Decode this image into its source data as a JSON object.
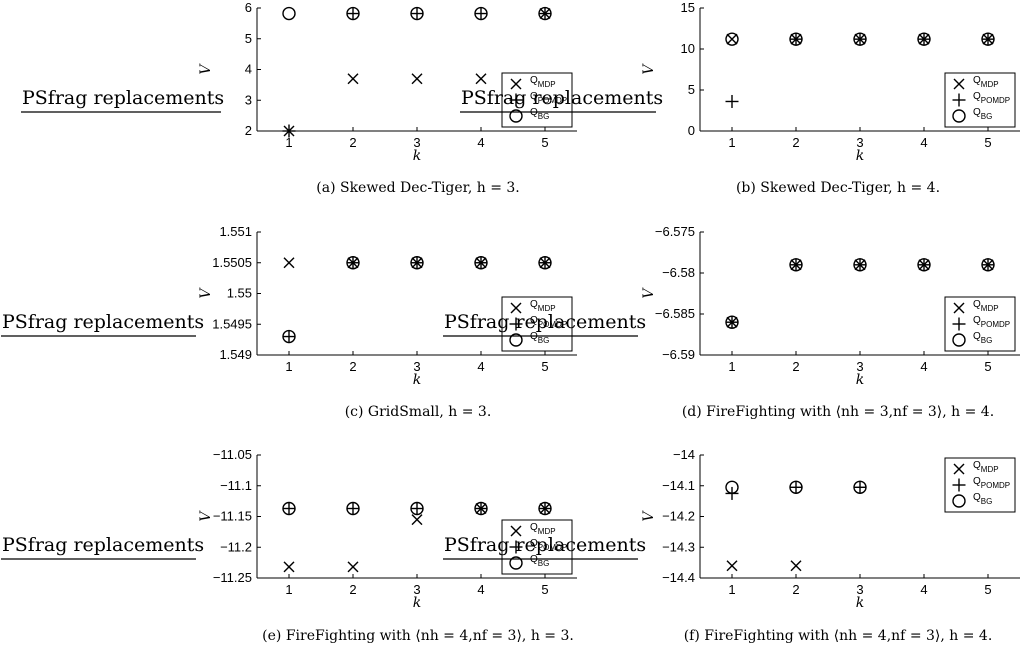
{
  "placeholder_label": "PSfrag replacements",
  "legend_labels": {
    "mdp_sub": "MDP",
    "pomdp_sub": "POMDP",
    "bg_sub": "BG",
    "q": "Q"
  },
  "chart_data": [
    {
      "type": "scatter",
      "caption": "(a) Skewed Dec-Tiger, h = 3.",
      "xlabel": "k",
      "ylabel": "V",
      "xlim": [
        0.5,
        5.5
      ],
      "ylim": [
        2,
        6
      ],
      "yticks": [
        "2",
        "3",
        "4",
        "5",
        "6"
      ],
      "xticks": [
        "1",
        "2",
        "3",
        "4",
        "5"
      ],
      "x": [
        1,
        2,
        3,
        4,
        5
      ],
      "series": [
        {
          "name": "QMDP",
          "marker": "x",
          "values": [
            2,
            3.7,
            3.7,
            3.7,
            5.82
          ]
        },
        {
          "name": "QPOMDP",
          "marker": "+",
          "values": [
            2,
            5.82,
            5.82,
            5.82,
            5.82
          ]
        },
        {
          "name": "QBG",
          "marker": "o",
          "values": [
            5.82,
            5.82,
            5.82,
            5.82,
            5.82
          ]
        }
      ]
    },
    {
      "type": "scatter",
      "caption": "(b) Skewed Dec-Tiger, h = 4.",
      "xlabel": "k",
      "ylabel": "V",
      "xlim": [
        0.5,
        5.5
      ],
      "ylim": [
        0,
        15
      ],
      "yticks": [
        "0",
        "5",
        "10",
        "15"
      ],
      "xticks": [
        "1",
        "2",
        "3",
        "4",
        "5"
      ],
      "x": [
        1,
        2,
        3,
        4,
        5
      ],
      "series": [
        {
          "name": "QMDP",
          "marker": "x",
          "values": [
            11.2,
            11.2,
            11.2,
            11.2,
            11.2
          ]
        },
        {
          "name": "QPOMDP",
          "marker": "+",
          "values": [
            3.6,
            11.2,
            11.2,
            11.2,
            11.2
          ]
        },
        {
          "name": "QBG",
          "marker": "o",
          "values": [
            11.2,
            11.2,
            11.2,
            11.2,
            11.2
          ]
        }
      ]
    },
    {
      "type": "scatter",
      "caption": "(c) GridSmall, h = 3.",
      "xlabel": "k",
      "ylabel": "V",
      "xlim": [
        0.5,
        5.5
      ],
      "ylim": [
        1.549,
        1.551
      ],
      "yticks": [
        "1.549",
        "1.5495",
        "1.55",
        "1.5505",
        "1.551"
      ],
      "xticks": [
        "1",
        "2",
        "3",
        "4",
        "5"
      ],
      "x": [
        1,
        2,
        3,
        4,
        5
      ],
      "series": [
        {
          "name": "QMDP",
          "marker": "x",
          "values": [
            1.5505,
            1.5505,
            1.5505,
            1.5505,
            1.5505
          ]
        },
        {
          "name": "QPOMDP",
          "marker": "+",
          "values": [
            1.5493,
            1.5505,
            1.5505,
            1.5505,
            1.5505
          ]
        },
        {
          "name": "QBG",
          "marker": "o",
          "values": [
            1.5493,
            1.5505,
            1.5505,
            1.5505,
            1.5505
          ]
        }
      ]
    },
    {
      "type": "scatter",
      "caption": "(d) FireFighting with ⟨nh = 3,nf = 3⟩, h = 4.",
      "xlabel": "k",
      "ylabel": "V",
      "xlim": [
        0.5,
        5.5
      ],
      "ylim": [
        -6.59,
        -6.575
      ],
      "yticks": [
        "−6.59",
        "−6.585",
        "−6.58",
        "−6.575"
      ],
      "xticks": [
        "1",
        "2",
        "3",
        "4",
        "5"
      ],
      "x": [
        1,
        2,
        3,
        4,
        5
      ],
      "series": [
        {
          "name": "QMDP",
          "marker": "x",
          "values": [
            -6.586,
            -6.579,
            -6.579,
            -6.579,
            -6.579
          ]
        },
        {
          "name": "QPOMDP",
          "marker": "+",
          "values": [
            -6.586,
            -6.579,
            -6.579,
            -6.579,
            -6.579
          ]
        },
        {
          "name": "QBG",
          "marker": "o",
          "values": [
            -6.586,
            -6.579,
            -6.579,
            -6.579,
            -6.579
          ]
        }
      ]
    },
    {
      "type": "scatter",
      "caption": "(e) FireFighting with ⟨nh = 4,nf = 3⟩, h = 3.",
      "xlabel": "k",
      "ylabel": "V",
      "xlim": [
        0.5,
        5.5
      ],
      "ylim": [
        -11.25,
        -11.05
      ],
      "yticks": [
        "−11.25",
        "−11.2",
        "−11.15",
        "−11.1",
        "−11.05"
      ],
      "xticks": [
        "1",
        "2",
        "3",
        "4",
        "5"
      ],
      "x": [
        1,
        2,
        3,
        4,
        5
      ],
      "series": [
        {
          "name": "QMDP",
          "marker": "x",
          "values": [
            -11.232,
            -11.232,
            -11.155,
            -11.137,
            -11.137
          ]
        },
        {
          "name": "QPOMDP",
          "marker": "+",
          "values": [
            -11.137,
            -11.137,
            -11.137,
            -11.137,
            -11.137
          ]
        },
        {
          "name": "QBG",
          "marker": "o",
          "values": [
            -11.137,
            -11.137,
            -11.137,
            -11.137,
            -11.137
          ]
        }
      ]
    },
    {
      "type": "scatter",
      "caption": "(f) FireFighting with ⟨nh = 4,nf = 3⟩, h = 4.",
      "xlabel": "k",
      "ylabel": "V",
      "xlim": [
        0.5,
        5.5
      ],
      "ylim": [
        -14.4,
        -14
      ],
      "yticks": [
        "−14.4",
        "−14.3",
        "−14.2",
        "−14.1",
        "−14"
      ],
      "xticks": [
        "1",
        "2",
        "3",
        "4",
        "5"
      ],
      "x": [
        1,
        2,
        3
      ],
      "series": [
        {
          "name": "QMDP",
          "marker": "x",
          "values": [
            -14.36,
            -14.36
          ]
        },
        {
          "name": "QPOMDP",
          "marker": "+",
          "values": [
            -14.125,
            -14.105,
            -14.105
          ]
        },
        {
          "name": "QBG",
          "marker": "o",
          "values": [
            -14.105,
            -14.105,
            -14.105
          ]
        }
      ]
    }
  ]
}
